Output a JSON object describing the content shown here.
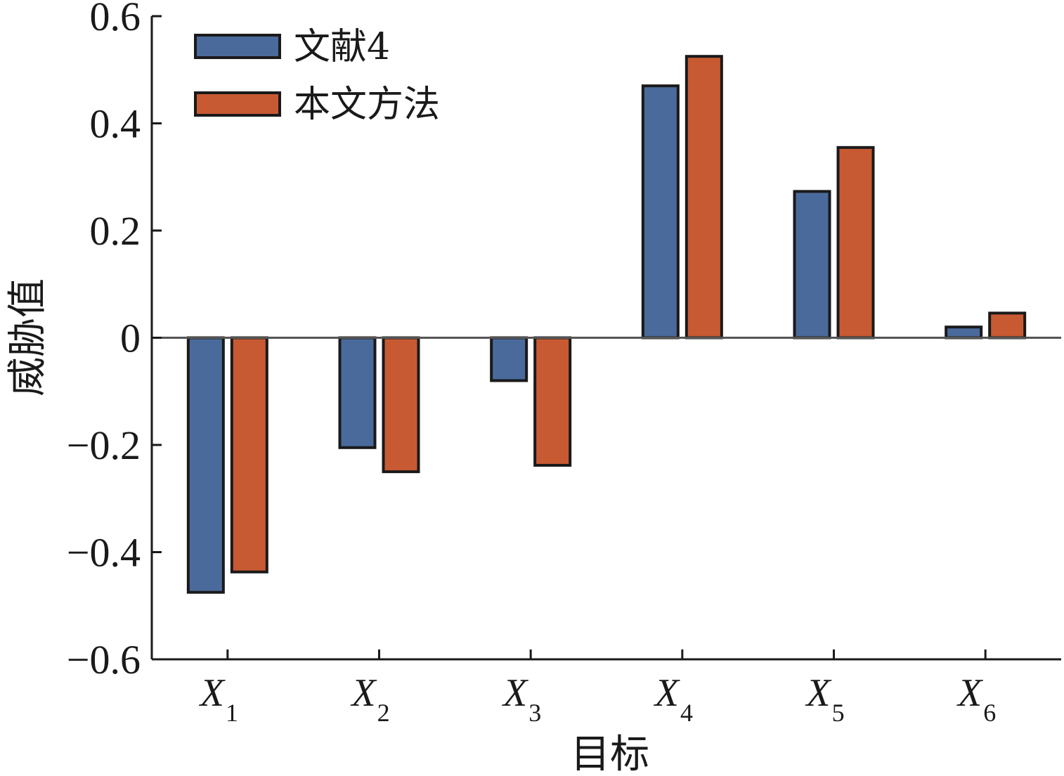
{
  "chart_data": {
    "type": "bar",
    "categories": [
      {
        "base": "X",
        "sub": "1"
      },
      {
        "base": "X",
        "sub": "2"
      },
      {
        "base": "X",
        "sub": "3"
      },
      {
        "base": "X",
        "sub": "4"
      },
      {
        "base": "X",
        "sub": "5"
      },
      {
        "base": "X",
        "sub": "6"
      }
    ],
    "series": [
      {
        "name": "文献4",
        "color": "#4a6a9c",
        "values": [
          -0.475,
          -0.205,
          -0.08,
          0.47,
          0.273,
          0.02
        ]
      },
      {
        "name": "本文方法",
        "color": "#c75a33",
        "values": [
          -0.437,
          -0.25,
          -0.238,
          0.525,
          0.355,
          0.046
        ]
      }
    ],
    "xlabel": "目标",
    "ylabel": "威胁值",
    "ylim": [
      -0.6,
      0.6
    ],
    "yticks": [
      {
        "value": -0.6,
        "label": "−0.6"
      },
      {
        "value": -0.4,
        "label": "−0.4"
      },
      {
        "value": -0.2,
        "label": "−0.2"
      },
      {
        "value": 0,
        "label": "0"
      },
      {
        "value": 0.2,
        "label": "0.2"
      },
      {
        "value": 0.4,
        "label": "0.4"
      },
      {
        "value": 0.6,
        "label": "0.6"
      }
    ],
    "grid": false,
    "legend_position": "top-left"
  }
}
